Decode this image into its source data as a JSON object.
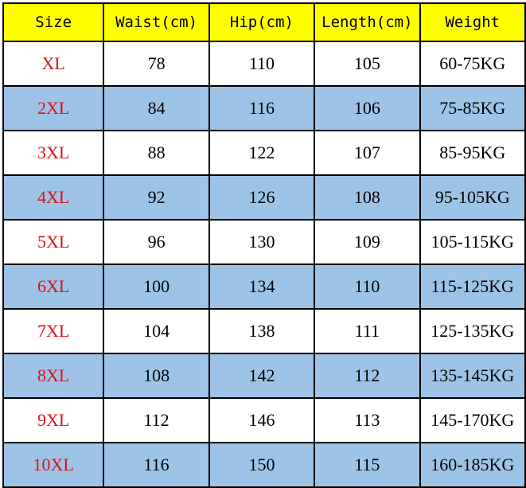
{
  "colors": {
    "header_bg": "#ffff00",
    "alt_row_bg": "#9dc3e6",
    "size_text": "#e01010"
  },
  "headers": [
    "Size",
    "Waist(cm)",
    "Hip(cm)",
    "Length(cm)",
    "Weight"
  ],
  "rows": [
    [
      "XL",
      "78",
      "110",
      "105",
      "60-75KG"
    ],
    [
      "2XL",
      "84",
      "116",
      "106",
      "75-85KG"
    ],
    [
      "3XL",
      "88",
      "122",
      "107",
      "85-95KG"
    ],
    [
      "4XL",
      "92",
      "126",
      "108",
      "95-105KG"
    ],
    [
      "5XL",
      "96",
      "130",
      "109",
      "105-115KG"
    ],
    [
      "6XL",
      "100",
      "134",
      "110",
      "115-125KG"
    ],
    [
      "7XL",
      "104",
      "138",
      "111",
      "125-135KG"
    ],
    [
      "8XL",
      "108",
      "142",
      "112",
      "135-145KG"
    ],
    [
      "9XL",
      "112",
      "146",
      "113",
      "145-170KG"
    ],
    [
      "10XL",
      "116",
      "150",
      "115",
      "160-185KG"
    ]
  ]
}
